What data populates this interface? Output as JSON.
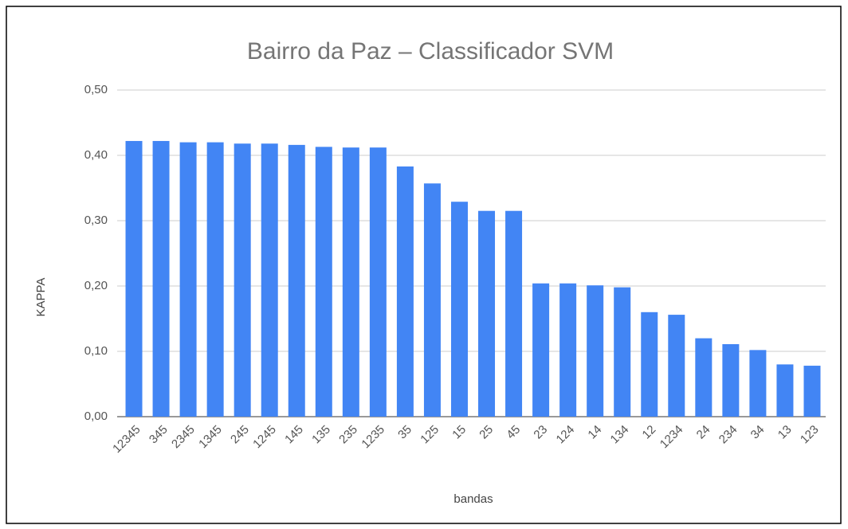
{
  "chart_data": {
    "type": "bar",
    "title": "Bairro da Paz – Classificador SVM",
    "x_label": "bandas",
    "y_label": "KAPPA",
    "categories": [
      "12345",
      "345",
      "2345",
      "1345",
      "245",
      "1245",
      "145",
      "135",
      "235",
      "1235",
      "35",
      "125",
      "15",
      "25",
      "45",
      "23",
      "124",
      "14",
      "134",
      "12",
      "1234",
      "24",
      "234",
      "34",
      "13",
      "123"
    ],
    "values": [
      0.422,
      0.422,
      0.42,
      0.42,
      0.418,
      0.418,
      0.416,
      0.413,
      0.412,
      0.412,
      0.383,
      0.357,
      0.329,
      0.315,
      0.315,
      0.204,
      0.204,
      0.201,
      0.198,
      0.16,
      0.156,
      0.12,
      0.111,
      0.102,
      0.08,
      0.078
    ],
    "color": "#4285f4",
    "ylim": [
      0,
      0.5
    ],
    "yticks": [
      {
        "value": 0,
        "label": "0,00"
      },
      {
        "value": 0.1,
        "label": "0,10"
      },
      {
        "value": 0.2,
        "label": "0,20"
      },
      {
        "value": 0.3,
        "label": "0,30"
      },
      {
        "value": 0.4,
        "label": "0,40"
      },
      {
        "value": 0.5,
        "label": "0,50"
      }
    ],
    "grid": true
  }
}
